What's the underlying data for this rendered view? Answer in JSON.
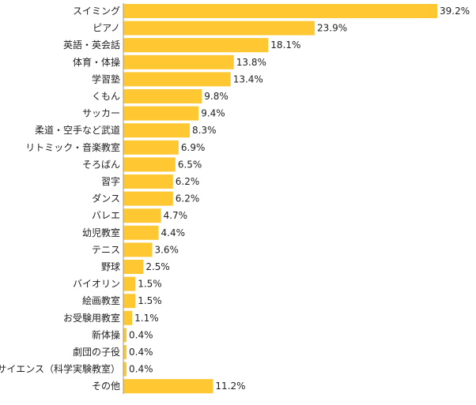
{
  "chart_data": {
    "type": "bar",
    "orientation": "horizontal",
    "title": "",
    "xlabel": "",
    "ylabel": "",
    "xlim": [
      0,
      39.2
    ],
    "grid": false,
    "legend": "none",
    "bar_color": "#ffc832",
    "axis_color": "#999999",
    "value_suffix": "%",
    "categories": [
      "スイミング",
      "ピアノ",
      "英語・英会話",
      "体育・体操",
      "学習塾",
      "くもん",
      "サッカー",
      "柔道・空手など武道",
      "リトミック・音楽教室",
      "そろばん",
      "習字",
      "ダンス",
      "バレエ",
      "幼児教室",
      "テニス",
      "野球",
      "バイオリン",
      "絵画教室",
      "お受験用教室",
      "新体操",
      "劇団の子役",
      "サイエンス（科学実験教室）",
      "その他"
    ],
    "values": [
      39.2,
      23.9,
      18.1,
      13.8,
      13.4,
      9.8,
      9.4,
      8.3,
      6.9,
      6.5,
      6.2,
      6.2,
      4.7,
      4.4,
      3.6,
      2.5,
      1.5,
      1.5,
      1.1,
      0.4,
      0.4,
      0.4,
      11.2
    ],
    "value_labels": [
      "39.2%",
      "23.9%",
      "18.1%",
      "13.8%",
      "13.4%",
      "9.8%",
      "9.4%",
      "8.3%",
      "6.9%",
      "6.5%",
      "6.2%",
      "6.2%",
      "4.7%",
      "4.4%",
      "3.6%",
      "2.5%",
      "1.5%",
      "1.5%",
      "1.1%",
      "0.4%",
      "0.4%",
      "0.4%",
      "11.2%"
    ]
  }
}
